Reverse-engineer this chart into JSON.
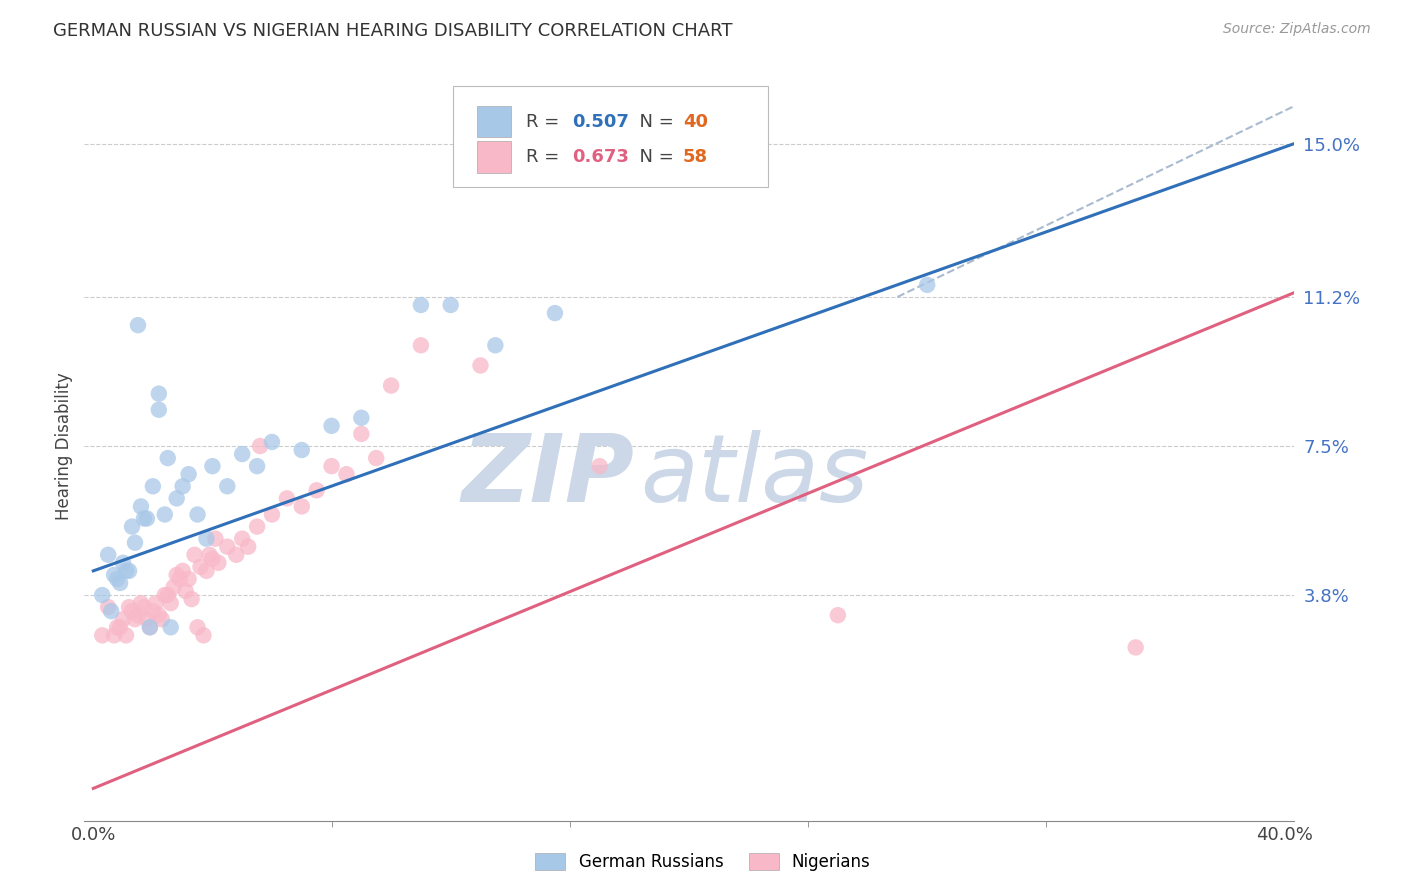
{
  "title": "GERMAN RUSSIAN VS NIGERIAN HEARING DISABILITY CORRELATION CHART",
  "source": "Source: ZipAtlas.com",
  "ylabel": "Hearing Disability",
  "xlim": [
    -0.003,
    0.403
  ],
  "ylim": [
    -0.018,
    0.168
  ],
  "ytick_positions": [
    0.038,
    0.075,
    0.112,
    0.15
  ],
  "ytick_labels": [
    "3.8%",
    "7.5%",
    "11.2%",
    "15.0%"
  ],
  "background_color": "#ffffff",
  "grid_color": "#cccccc",
  "watermark_text": "ZIPatlas",
  "watermark_color": "#ccd8e8",
  "blue_color": "#a8c8e8",
  "blue_line_color": "#3070b8",
  "pink_color": "#f8b8c8",
  "pink_line_color": "#e06080",
  "blue_R": "0.507",
  "blue_N": "40",
  "pink_R": "0.673",
  "pink_N": "58",
  "N_color": "#e06820",
  "R_val_blue_color": "#3070b8",
  "R_val_pink_color": "#e06080",
  "blue_line_x": [
    0.0,
    0.403
  ],
  "blue_line_y": [
    0.044,
    0.15
  ],
  "pink_line_x": [
    0.0,
    0.403
  ],
  "pink_line_y": [
    -0.01,
    0.113
  ],
  "diag_line_x": [
    0.27,
    0.405
  ],
  "diag_line_y": [
    0.112,
    0.16
  ],
  "blue_scatter_x": [
    0.003,
    0.005,
    0.006,
    0.007,
    0.008,
    0.009,
    0.01,
    0.011,
    0.012,
    0.013,
    0.014,
    0.015,
    0.016,
    0.017,
    0.018,
    0.019,
    0.02,
    0.022,
    0.022,
    0.024,
    0.025,
    0.026,
    0.028,
    0.03,
    0.032,
    0.035,
    0.038,
    0.04,
    0.045,
    0.05,
    0.055,
    0.06,
    0.07,
    0.08,
    0.09,
    0.11,
    0.12,
    0.135,
    0.155,
    0.28
  ],
  "blue_scatter_y": [
    0.038,
    0.048,
    0.034,
    0.043,
    0.042,
    0.041,
    0.046,
    0.044,
    0.044,
    0.055,
    0.051,
    0.105,
    0.06,
    0.057,
    0.057,
    0.03,
    0.065,
    0.088,
    0.084,
    0.058,
    0.072,
    0.03,
    0.062,
    0.065,
    0.068,
    0.058,
    0.052,
    0.07,
    0.065,
    0.073,
    0.07,
    0.076,
    0.074,
    0.08,
    0.082,
    0.11,
    0.11,
    0.1,
    0.108,
    0.115
  ],
  "pink_scatter_x": [
    0.003,
    0.005,
    0.007,
    0.008,
    0.009,
    0.01,
    0.011,
    0.012,
    0.013,
    0.014,
    0.015,
    0.016,
    0.017,
    0.018,
    0.019,
    0.02,
    0.021,
    0.022,
    0.023,
    0.024,
    0.025,
    0.026,
    0.027,
    0.028,
    0.029,
    0.03,
    0.031,
    0.032,
    0.033,
    0.034,
    0.035,
    0.036,
    0.037,
    0.038,
    0.039,
    0.04,
    0.041,
    0.042,
    0.045,
    0.048,
    0.05,
    0.052,
    0.055,
    0.056,
    0.06,
    0.065,
    0.07,
    0.075,
    0.08,
    0.085,
    0.09,
    0.095,
    0.1,
    0.11,
    0.13,
    0.17,
    0.25,
    0.35
  ],
  "pink_scatter_y": [
    0.028,
    0.035,
    0.028,
    0.03,
    0.03,
    0.032,
    0.028,
    0.035,
    0.034,
    0.032,
    0.033,
    0.036,
    0.035,
    0.032,
    0.03,
    0.034,
    0.036,
    0.033,
    0.032,
    0.038,
    0.038,
    0.036,
    0.04,
    0.043,
    0.042,
    0.044,
    0.039,
    0.042,
    0.037,
    0.048,
    0.03,
    0.045,
    0.028,
    0.044,
    0.048,
    0.047,
    0.052,
    0.046,
    0.05,
    0.048,
    0.052,
    0.05,
    0.055,
    0.075,
    0.058,
    0.062,
    0.06,
    0.064,
    0.07,
    0.068,
    0.078,
    0.072,
    0.09,
    0.1,
    0.095,
    0.07,
    0.033,
    0.025
  ]
}
